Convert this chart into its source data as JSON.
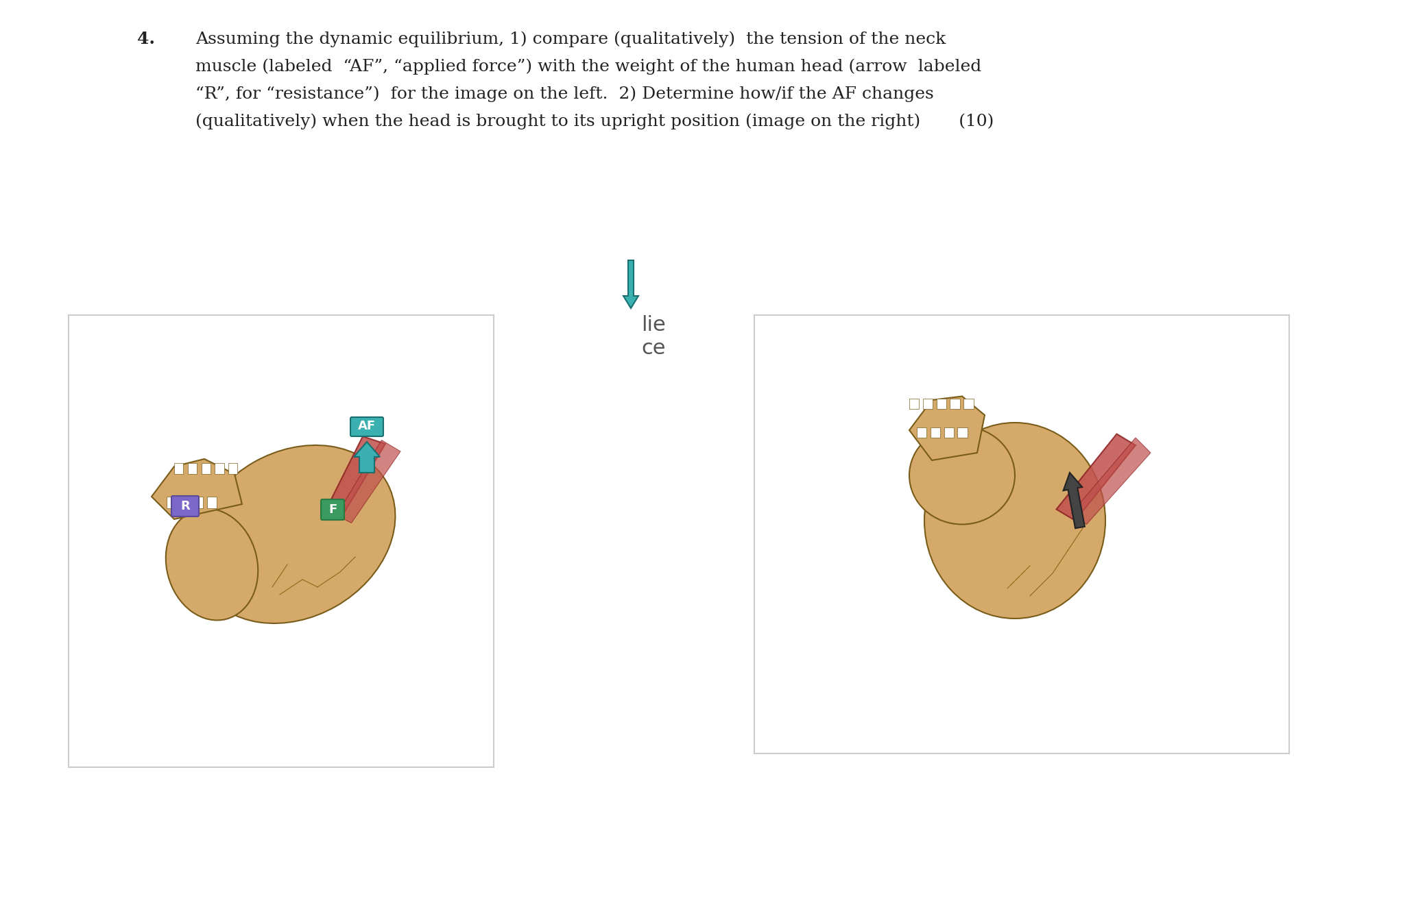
{
  "bg_color": "#ffffff",
  "text_color": "#1a1a2e",
  "question_number": "4.",
  "question_text_line1": "Assuming the dynamic equilibrium, 1) compare (qualitatively)  the tension of the neck",
  "question_text_line2": "muscle (labeled  “AF”, “applied force”) with the weight of the human head (arrow  labeled",
  "question_text_line3": "“R”, for “resistance”)  for the image on the left.  2) Determine how/if the AF changes",
  "question_text_line4": "(qualitatively) when the head is brought to its upright position (image on the right)       (10)",
  "skull_color": "#d4a96a",
  "skull_outline": "#8b6914",
  "muscle_color": "#c0504d",
  "arrow_teal": "#2e8b8b",
  "label_R_color": "#5b4a8a",
  "label_F_color": "#2e8b57",
  "label_AF_color": "#2e8b8b",
  "watermark_text": "lie\nce",
  "font_size_question": 18,
  "fig_width": 20.46,
  "fig_height": 13.11
}
